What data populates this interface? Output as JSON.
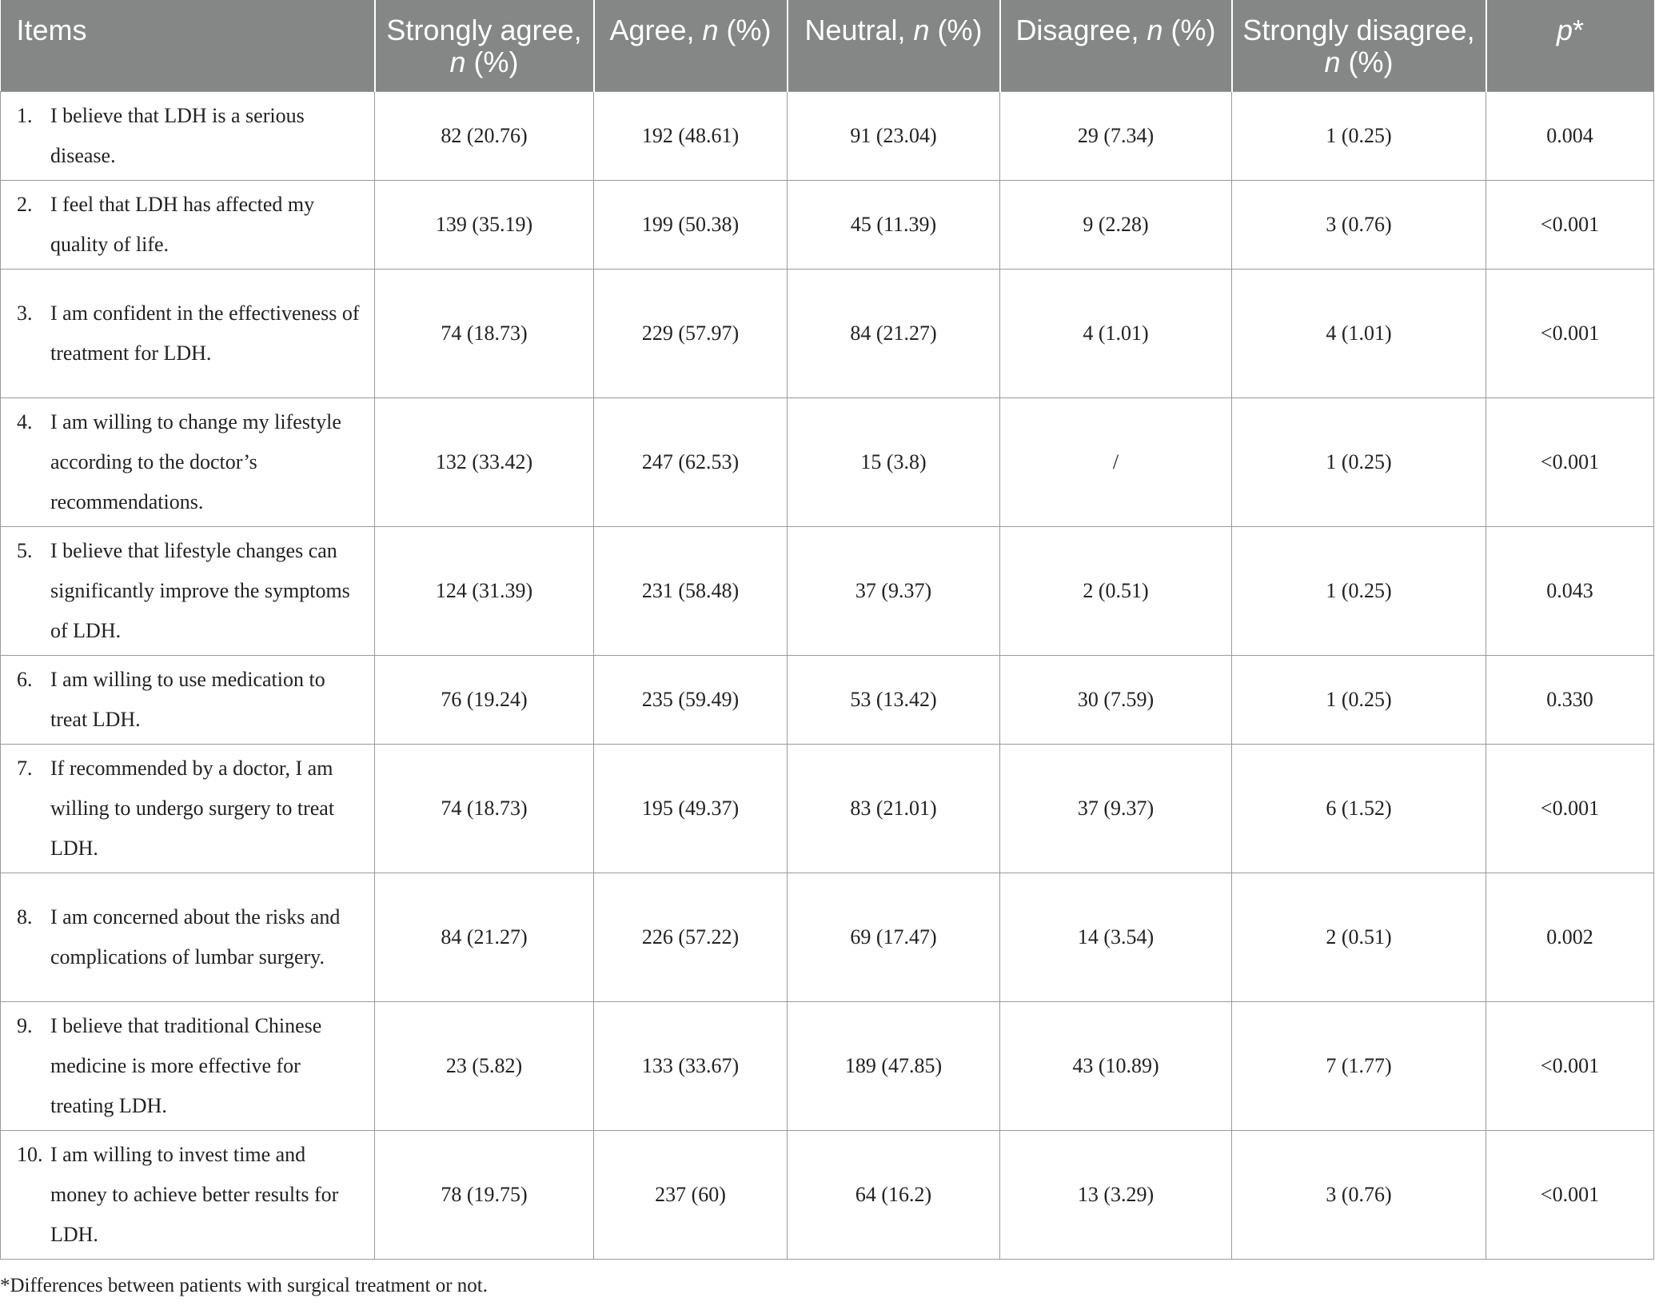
{
  "table": {
    "headers": [
      {
        "text": "Items",
        "italic": ""
      },
      {
        "text": "Strongly agree, ",
        "italic": "n",
        "suffix": " (%)"
      },
      {
        "text": "Agree, ",
        "italic": "n",
        "suffix": " (%)"
      },
      {
        "text": "Neutral, ",
        "italic": "n",
        "suffix": " (%)"
      },
      {
        "text": "Disagree, ",
        "italic": "n",
        "suffix": " (%)"
      },
      {
        "text": "Strongly disagree, ",
        "italic": "n",
        "suffix": " (%)"
      },
      {
        "text": "",
        "italic": "p",
        "suffix": "*"
      }
    ],
    "rows": [
      {
        "num": "1.",
        "text": "I believe that LDH is a serious disease.",
        "values": [
          "82 (20.76)",
          "192 (48.61)",
          "91 (23.04)",
          "29 (7.34)",
          "1 (0.25)",
          "0.004"
        ]
      },
      {
        "num": "2.",
        "text": "I feel that LDH has affected my quality of life.",
        "values": [
          "139 (35.19)",
          "199 (50.38)",
          "45 (11.39)",
          "9 (2.28)",
          "3 (0.76)",
          "<0.001"
        ]
      },
      {
        "num": "3.",
        "text": "I am confident in the effectiveness of treatment for LDH.",
        "values": [
          "74 (18.73)",
          "229 (57.97)",
          "84 (21.27)",
          "4 (1.01)",
          "4 (1.01)",
          "<0.001"
        ]
      },
      {
        "num": "4.",
        "text": "I am willing to change my lifestyle according to the doctor’s recommendations.",
        "values": [
          "132 (33.42)",
          "247 (62.53)",
          "15 (3.8)",
          "/",
          "1 (0.25)",
          "<0.001"
        ]
      },
      {
        "num": "5.",
        "text": "I believe that lifestyle changes can significantly improve the symptoms of LDH.",
        "values": [
          "124 (31.39)",
          "231 (58.48)",
          "37 (9.37)",
          "2 (0.51)",
          "1 (0.25)",
          "0.043"
        ]
      },
      {
        "num": "6.",
        "text": "I am willing to use medication to treat LDH.",
        "values": [
          "76 (19.24)",
          "235 (59.49)",
          "53 (13.42)",
          "30 (7.59)",
          "1 (0.25)",
          "0.330"
        ]
      },
      {
        "num": "7.",
        "text": "If recommended by a doctor, I am willing to undergo surgery to treat LDH.",
        "values": [
          "74 (18.73)",
          "195 (49.37)",
          "83 (21.01)",
          "37 (9.37)",
          "6 (1.52)",
          "<0.001"
        ]
      },
      {
        "num": "8.",
        "text": "I am concerned about the risks and complications of lumbar surgery.",
        "values": [
          "84 (21.27)",
          "226 (57.22)",
          "69 (17.47)",
          "14 (3.54)",
          "2 (0.51)",
          "0.002"
        ]
      },
      {
        "num": "9.",
        "text": "I believe that traditional Chinese medicine is more effective for treating LDH.",
        "values": [
          "23 (5.82)",
          "133 (33.67)",
          "189 (47.85)",
          "43 (10.89)",
          "7 (1.77)",
          "<0.001"
        ]
      },
      {
        "num": "10.",
        "text": "I am willing to invest time and money to achieve better results for LDH.",
        "values": [
          "78 (19.75)",
          "237 (60)",
          "64 (16.2)",
          "13 (3.29)",
          "3 (0.76)",
          "<0.001"
        ]
      }
    ]
  },
  "footnote": "*Differences between patients with surgical treatment or not."
}
